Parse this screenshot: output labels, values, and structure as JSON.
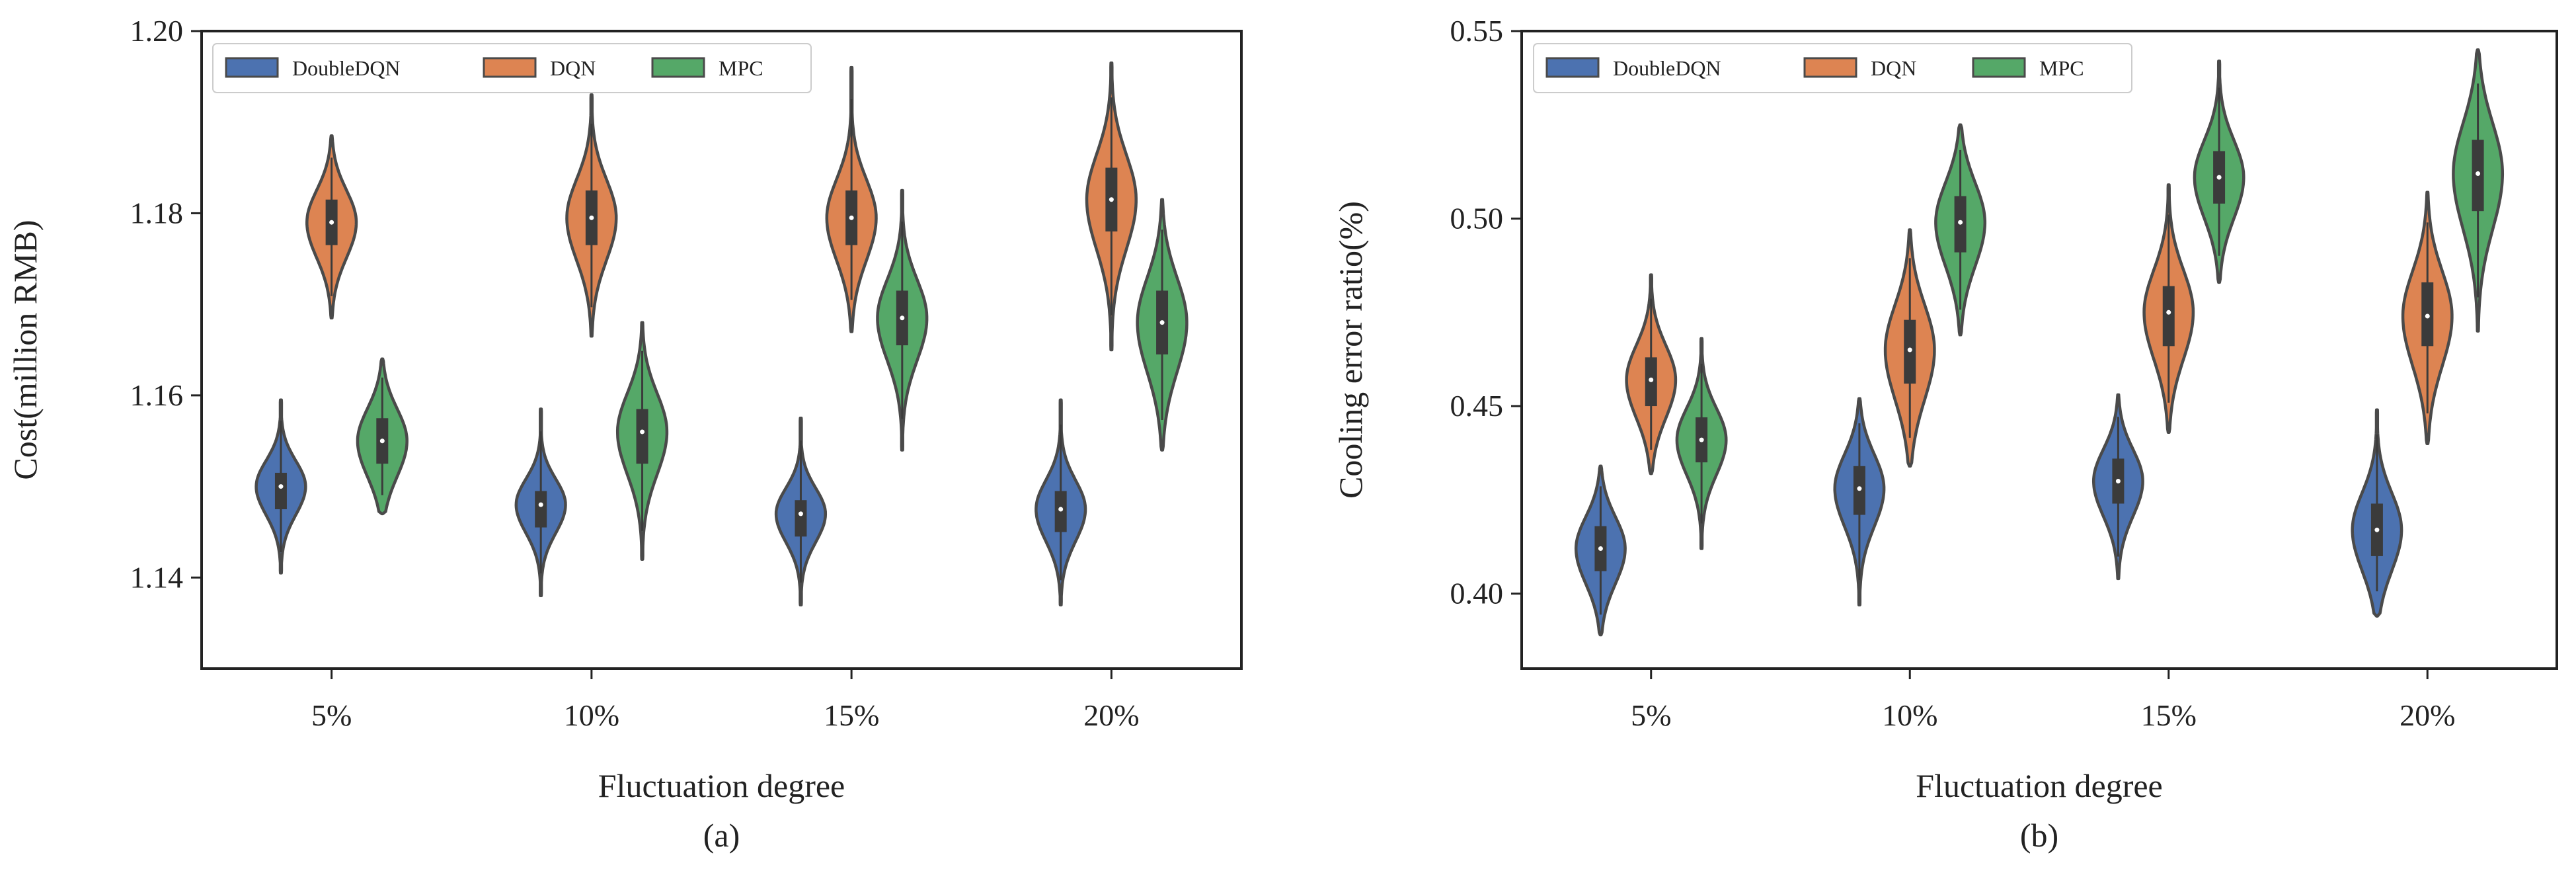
{
  "palette": {
    "DoubleDQN": "#4c72b0",
    "DQN": "#dd8452",
    "MPC": "#55a868",
    "outline": "#4a4a4a",
    "box": "#3b3b3b"
  },
  "chart_data": [
    {
      "type": "violin",
      "panel_label": "(a)",
      "title": "",
      "xlabel": "Fluctuation degree",
      "ylabel": "Cost(million RMB)",
      "ylim": [
        1.13,
        1.2
      ],
      "yticks": [
        1.14,
        1.16,
        1.18,
        1.2
      ],
      "ytick_labels": [
        "1.14",
        "1.16",
        "1.18",
        "1.20"
      ],
      "categories": [
        "5%",
        "10%",
        "15%",
        "20%"
      ],
      "legend": {
        "placement": "top-left",
        "entries": [
          "DoubleDQN",
          "DQN",
          "MPC"
        ]
      },
      "series": [
        {
          "name": "DoubleDQN",
          "median": [
            1.15,
            1.148,
            1.147,
            1.1475
          ],
          "q1": [
            1.1475,
            1.1455,
            1.1445,
            1.145
          ],
          "q3": [
            1.1515,
            1.1495,
            1.1485,
            1.1495
          ],
          "min": [
            1.1405,
            1.138,
            1.137,
            1.137
          ],
          "max": [
            1.1595,
            1.1585,
            1.1575,
            1.1595
          ]
        },
        {
          "name": "DQN",
          "median": [
            1.179,
            1.1795,
            1.1795,
            1.1815
          ],
          "q1": [
            1.1765,
            1.1765,
            1.1765,
            1.178
          ],
          "q3": [
            1.1815,
            1.1825,
            1.1825,
            1.185
          ],
          "min": [
            1.1685,
            1.1665,
            1.167,
            1.165
          ],
          "max": [
            1.1885,
            1.193,
            1.196,
            1.1965
          ]
        },
        {
          "name": "MPC",
          "median": [
            1.155,
            1.156,
            1.1685,
            1.168
          ],
          "q1": [
            1.1525,
            1.1525,
            1.1655,
            1.1645
          ],
          "q3": [
            1.1575,
            1.1585,
            1.1715,
            1.1715
          ],
          "min": [
            1.147,
            1.142,
            1.154,
            1.154
          ],
          "max": [
            1.164,
            1.168,
            1.1825,
            1.1815
          ]
        }
      ]
    },
    {
      "type": "violin",
      "panel_label": "(b)",
      "title": "",
      "xlabel": "Fluctuation degree",
      "ylabel": "Cooling error ratio(%)",
      "ylim": [
        0.38,
        0.55
      ],
      "yticks": [
        0.4,
        0.45,
        0.5,
        0.55
      ],
      "ytick_labels": [
        "0.40",
        "0.45",
        "0.50",
        "0.55"
      ],
      "categories": [
        "5%",
        "10%",
        "15%",
        "20%"
      ],
      "legend": {
        "placement": "top-left",
        "entries": [
          "DoubleDQN",
          "DQN",
          "MPC"
        ]
      },
      "series": [
        {
          "name": "DoubleDQN",
          "median": [
            0.412,
            0.428,
            0.43,
            0.417
          ],
          "q1": [
            0.406,
            0.421,
            0.424,
            0.41
          ],
          "q3": [
            0.418,
            0.434,
            0.436,
            0.424
          ],
          "min": [
            0.389,
            0.397,
            0.404,
            0.394
          ],
          "max": [
            0.434,
            0.452,
            0.453,
            0.449
          ]
        },
        {
          "name": "DQN",
          "median": [
            0.457,
            0.465,
            0.475,
            0.474
          ],
          "q1": [
            0.45,
            0.456,
            0.466,
            0.466
          ],
          "q3": [
            0.463,
            0.473,
            0.482,
            0.483
          ],
          "min": [
            0.432,
            0.434,
            0.443,
            0.44
          ],
          "max": [
            0.485,
            0.497,
            0.509,
            0.507
          ]
        },
        {
          "name": "MPC",
          "median": [
            0.441,
            0.499,
            0.511,
            0.512
          ],
          "q1": [
            0.435,
            0.491,
            0.504,
            0.502
          ],
          "q3": [
            0.447,
            0.506,
            0.518,
            0.521
          ],
          "min": [
            0.412,
            0.469,
            0.483,
            0.47
          ],
          "max": [
            0.468,
            0.525,
            0.542,
            0.545
          ]
        }
      ]
    }
  ]
}
